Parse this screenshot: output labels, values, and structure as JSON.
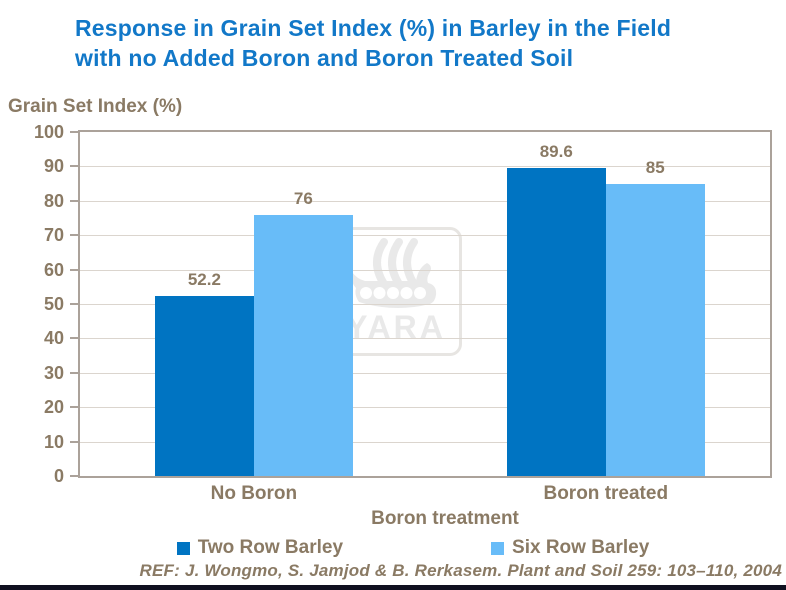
{
  "header": {
    "line1": "Response in Grain Set Index (%) in Barley in the Field",
    "line2": "with no Added Boron and Boron Treated Soil"
  },
  "watermark": {
    "text": "YARA",
    "icon": "viking-ship-icon"
  },
  "footer": {
    "reference": "REF: J. Wongmo, S. Jamjod & B. Rerkasem. Plant and Soil 259: 103–110, 2004"
  },
  "colors": {
    "title_blue": "#1278C8",
    "text_brown": "#8A7A64",
    "plot_border": "#ABA29A",
    "gridline": "#DBD5CE",
    "watermark_gray": "#E9E9E9",
    "watermark_border": "#E7E5E2",
    "footer_bar": "#101020",
    "series_dark_blue": "#0074C2",
    "series_light_blue": "#68BCF8"
  },
  "chart_data": {
    "type": "bar",
    "title": "Response in Grain Set Index (%) in Barley in the Field with no Added Boron and Boron Treated Soil",
    "categories": [
      "No Boron",
      "Boron treated"
    ],
    "series": [
      {
        "name": "Two Row Barley",
        "values": [
          52.2,
          89.6
        ],
        "color": "#0074C2"
      },
      {
        "name": "Six Row Barley",
        "values": [
          76,
          85
        ],
        "color": "#68BCF8"
      }
    ],
    "xlabel": "Boron treatment",
    "ylabel": "Grain Set Index (%)",
    "ylim": [
      0,
      100
    ],
    "ytick_step": 10,
    "grid": true,
    "legend_position": "bottom",
    "data_labels": true
  }
}
